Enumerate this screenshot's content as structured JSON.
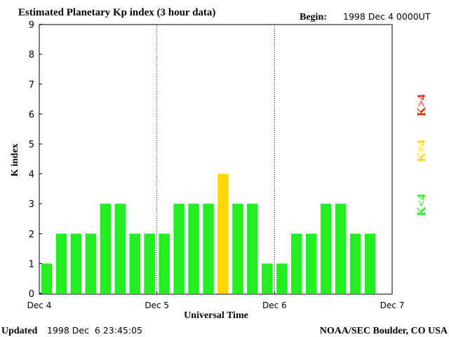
{
  "chart_data": {
    "type": "bar",
    "title": "Estimated Planetary Kp index (3 hour data)",
    "begin_label": "Begin:",
    "begin_value": "1998 Dec 4 0000UT",
    "ylabel": "K index",
    "xlabel": "Universal Time",
    "ylim": [
      0,
      9
    ],
    "yticks": [
      "0",
      "1",
      "2",
      "3",
      "4",
      "5",
      "6",
      "7",
      "8",
      "9"
    ],
    "xticks": [
      "Dec 4",
      "Dec 5",
      "Dec 6",
      "Dec 7"
    ],
    "values": [
      1,
      2,
      2,
      2,
      3,
      3,
      2,
      2,
      2,
      3,
      3,
      3,
      4,
      3,
      3,
      1,
      1,
      2,
      2,
      3,
      3,
      2,
      2
    ],
    "legend": {
      "low": {
        "label": "K<4",
        "color": "#22ee22"
      },
      "mid": {
        "label": "K=4",
        "color": "#ffd700"
      },
      "high": {
        "label": "K>4",
        "color": "#ee2200"
      }
    },
    "grid": "vertical dotted day separators"
  },
  "footer": {
    "updated_label": "Updated",
    "updated_value": "1998 Dec  6 23:45:05",
    "source": "NOAA/SEC Boulder, CO USA"
  }
}
